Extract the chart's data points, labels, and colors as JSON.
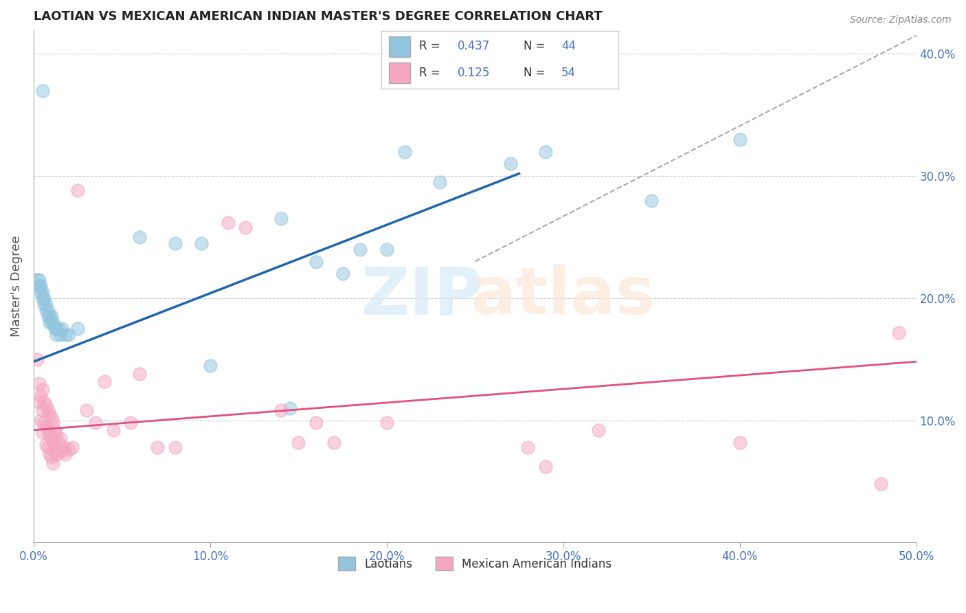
{
  "title": "LAOTIAN VS MEXICAN AMERICAN INDIAN MASTER'S DEGREE CORRELATION CHART",
  "source": "Source: ZipAtlas.com",
  "ylabel": "Master's Degree",
  "xmin": 0.0,
  "xmax": 0.5,
  "ymin": 0.0,
  "ymax": 0.42,
  "blue_color": "#92c5de",
  "pink_color": "#f4a6c0",
  "blue_line_color": "#2166ac",
  "pink_line_color": "#e05080",
  "blue_scatter": [
    [
      0.005,
      0.37
    ],
    [
      0.002,
      0.215
    ],
    [
      0.003,
      0.215
    ],
    [
      0.003,
      0.21
    ],
    [
      0.004,
      0.21
    ],
    [
      0.004,
      0.205
    ],
    [
      0.005,
      0.205
    ],
    [
      0.005,
      0.2
    ],
    [
      0.006,
      0.2
    ],
    [
      0.006,
      0.195
    ],
    [
      0.007,
      0.195
    ],
    [
      0.007,
      0.19
    ],
    [
      0.008,
      0.19
    ],
    [
      0.008,
      0.185
    ],
    [
      0.009,
      0.185
    ],
    [
      0.009,
      0.18
    ],
    [
      0.01,
      0.185
    ],
    [
      0.01,
      0.18
    ],
    [
      0.011,
      0.18
    ],
    [
      0.012,
      0.175
    ],
    [
      0.013,
      0.175
    ],
    [
      0.013,
      0.17
    ],
    [
      0.014,
      0.175
    ],
    [
      0.015,
      0.17
    ],
    [
      0.016,
      0.175
    ],
    [
      0.018,
      0.17
    ],
    [
      0.02,
      0.17
    ],
    [
      0.025,
      0.175
    ],
    [
      0.06,
      0.25
    ],
    [
      0.08,
      0.245
    ],
    [
      0.095,
      0.245
    ],
    [
      0.1,
      0.145
    ],
    [
      0.14,
      0.265
    ],
    [
      0.145,
      0.11
    ],
    [
      0.16,
      0.23
    ],
    [
      0.175,
      0.22
    ],
    [
      0.185,
      0.24
    ],
    [
      0.2,
      0.24
    ],
    [
      0.21,
      0.32
    ],
    [
      0.23,
      0.295
    ],
    [
      0.29,
      0.32
    ],
    [
      0.35,
      0.28
    ],
    [
      0.4,
      0.33
    ],
    [
      0.27,
      0.31
    ]
  ],
  "pink_scatter": [
    [
      0.002,
      0.15
    ],
    [
      0.003,
      0.13
    ],
    [
      0.003,
      0.115
    ],
    [
      0.004,
      0.12
    ],
    [
      0.004,
      0.1
    ],
    [
      0.005,
      0.125
    ],
    [
      0.005,
      0.108
    ],
    [
      0.005,
      0.09
    ],
    [
      0.006,
      0.115
    ],
    [
      0.006,
      0.098
    ],
    [
      0.007,
      0.112
    ],
    [
      0.007,
      0.095
    ],
    [
      0.007,
      0.08
    ],
    [
      0.008,
      0.108
    ],
    [
      0.008,
      0.092
    ],
    [
      0.008,
      0.078
    ],
    [
      0.009,
      0.105
    ],
    [
      0.009,
      0.088
    ],
    [
      0.009,
      0.072
    ],
    [
      0.01,
      0.102
    ],
    [
      0.01,
      0.085
    ],
    [
      0.01,
      0.07
    ],
    [
      0.011,
      0.098
    ],
    [
      0.011,
      0.082
    ],
    [
      0.011,
      0.065
    ],
    [
      0.012,
      0.092
    ],
    [
      0.012,
      0.075
    ],
    [
      0.013,
      0.088
    ],
    [
      0.013,
      0.072
    ],
    [
      0.014,
      0.082
    ],
    [
      0.015,
      0.085
    ],
    [
      0.016,
      0.075
    ],
    [
      0.017,
      0.078
    ],
    [
      0.018,
      0.072
    ],
    [
      0.02,
      0.076
    ],
    [
      0.022,
      0.078
    ],
    [
      0.025,
      0.288
    ],
    [
      0.03,
      0.108
    ],
    [
      0.035,
      0.098
    ],
    [
      0.04,
      0.132
    ],
    [
      0.045,
      0.092
    ],
    [
      0.055,
      0.098
    ],
    [
      0.06,
      0.138
    ],
    [
      0.07,
      0.078
    ],
    [
      0.08,
      0.078
    ],
    [
      0.11,
      0.262
    ],
    [
      0.12,
      0.258
    ],
    [
      0.14,
      0.108
    ],
    [
      0.15,
      0.082
    ],
    [
      0.16,
      0.098
    ],
    [
      0.17,
      0.082
    ],
    [
      0.2,
      0.098
    ],
    [
      0.28,
      0.078
    ],
    [
      0.29,
      0.062
    ],
    [
      0.32,
      0.092
    ],
    [
      0.4,
      0.082
    ],
    [
      0.48,
      0.048
    ],
    [
      0.49,
      0.172
    ]
  ],
  "yticks": [
    0.1,
    0.2,
    0.3,
    0.4
  ],
  "ytick_labels": [
    "10.0%",
    "20.0%",
    "30.0%",
    "40.0%"
  ],
  "xticks": [
    0.0,
    0.1,
    0.2,
    0.3,
    0.4,
    0.5
  ],
  "xtick_labels": [
    "0.0%",
    "10.0%",
    "20.0%",
    "30.0%",
    "40.0%",
    "50.0%"
  ],
  "grid_color": "#cccccc",
  "background_color": "#ffffff",
  "blue_line_x": [
    0.0,
    0.275
  ],
  "blue_line_y": [
    0.148,
    0.302
  ],
  "pink_line_x": [
    0.0,
    0.5
  ],
  "pink_line_y": [
    0.092,
    0.148
  ],
  "dash_line_x": [
    0.25,
    0.5
  ],
  "dash_line_y": [
    0.23,
    0.415
  ]
}
